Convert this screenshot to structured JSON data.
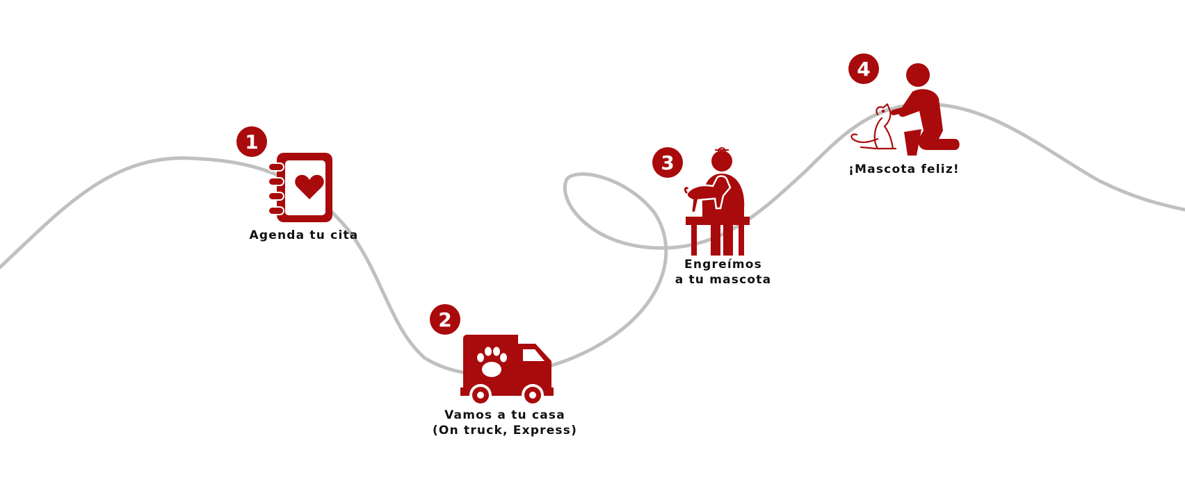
{
  "diagram": {
    "accent_color": "#a90a0c",
    "path_color": "#c0c0c0",
    "steps": [
      {
        "number": "1",
        "icon": "appointment-book-heart-icon",
        "label_lines": [
          "Agenda tu cita"
        ]
      },
      {
        "number": "2",
        "icon": "pet-truck-icon",
        "label_lines": [
          "Vamos a tu casa",
          "(On truck, Express)"
        ]
      },
      {
        "number": "3",
        "icon": "veterinarian-grooming-icon",
        "label_lines": [
          "Engreímos",
          "a tu mascota"
        ]
      },
      {
        "number": "4",
        "icon": "person-petting-dog-icon",
        "label_lines": [
          "¡Mascota feliz!"
        ]
      }
    ]
  }
}
